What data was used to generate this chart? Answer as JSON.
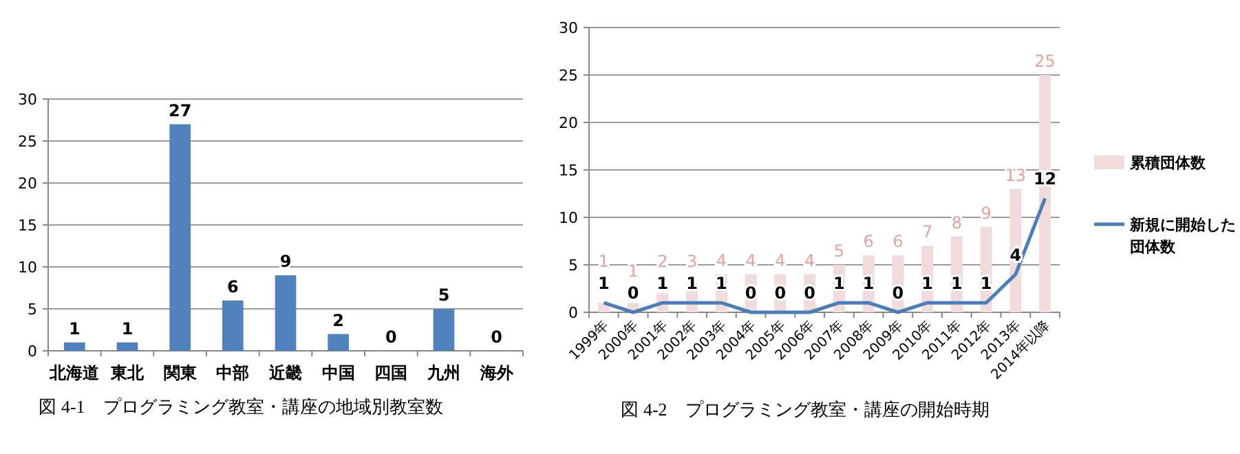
{
  "chart_data": [
    {
      "type": "bar",
      "categories": [
        "北海道",
        "東北",
        "関東",
        "中部",
        "近畿",
        "中国",
        "四国",
        "九州",
        "海外"
      ],
      "series": [
        {
          "color": "#4f81bd",
          "values": [
            1,
            1,
            27,
            6,
            9,
            2,
            0,
            5,
            0
          ]
        }
      ],
      "ylim": [
        0,
        30
      ],
      "yticks": [
        0,
        5,
        10,
        15,
        20,
        25,
        30
      ],
      "grid": "y",
      "data_labels": true,
      "legend": false,
      "annotations": [
        "図 4-1　プログラミング教室・講座の地域別教室数"
      ]
    },
    {
      "type": "bar",
      "categories": [
        "1999年",
        "2000年",
        "2001年",
        "2002年",
        "2003年",
        "2004年",
        "2005年",
        "2006年",
        "2007年",
        "2008年",
        "2009年",
        "2010年",
        "2011年",
        "2012年",
        "2013年",
        "2014年以降"
      ],
      "series": [
        {
          "name": "累積団体数",
          "color": "#f2dcdb",
          "values": [
            1,
            1,
            2,
            3,
            4,
            4,
            4,
            4,
            5,
            6,
            6,
            7,
            8,
            9,
            13,
            25
          ]
        },
        {
          "name": "新規に開始した団体数",
          "type": "line",
          "color": "#4a7ebb",
          "values": [
            1,
            0,
            1,
            1,
            1,
            0,
            0,
            0,
            1,
            1,
            0,
            1,
            1,
            1,
            4,
            12
          ]
        }
      ],
      "ylim": [
        0,
        30
      ],
      "yticks": [
        0,
        5,
        10,
        15,
        20,
        25,
        30
      ],
      "grid": "y",
      "data_labels": true,
      "legend": "right",
      "marker": "none",
      "line_style": "solid",
      "annotations": [
        "図 4-2　プログラミング教室・講座の開始時期"
      ]
    }
  ]
}
